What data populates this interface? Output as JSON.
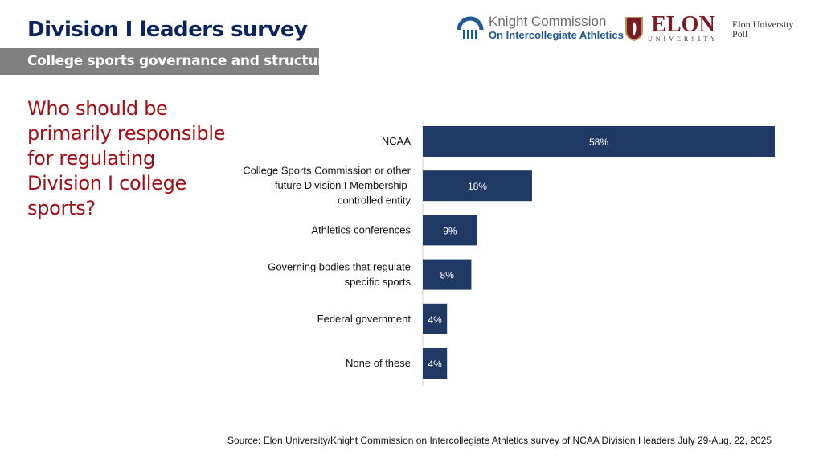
{
  "header": {
    "title": "Division I leaders survey",
    "subtitle": "College sports governance and structure",
    "logo_knight_line1": "Knight Commission",
    "logo_knight_line2": "On Intercollegiate Athletics",
    "logo_elon": "ELON",
    "logo_elon_sub": "UNIVERSITY",
    "logo_poll": "Elon University Poll"
  },
  "question": "Who should be primarily responsible for regulating Division I college sports?",
  "colors": {
    "bar": "#1f3864",
    "title": "#0b2460",
    "question": "#a50d14"
  },
  "chart_data": {
    "type": "bar",
    "orientation": "horizontal",
    "title": "Who should be primarily responsible for regulating Division I college sports?",
    "categories": [
      "NCAA",
      "College Sports Commission or other future Division I Membership-controlled entity",
      "Athletics conferences",
      "Governing bodies that regulate specific sports",
      "Federal government",
      "None of these"
    ],
    "category_lines": [
      [
        "NCAA"
      ],
      [
        "College Sports Commission or other",
        "future Division I Membership-",
        "controlled entity"
      ],
      [
        "Athletics conferences"
      ],
      [
        "Governing bodies that regulate",
        "specific sports"
      ],
      [
        "Federal government"
      ],
      [
        "None of these"
      ]
    ],
    "values": [
      58,
      18,
      9,
      8,
      4,
      4
    ],
    "labels": [
      "58%",
      "18%",
      "9%",
      "8%",
      "4%",
      "4%"
    ],
    "xlim": [
      0,
      58
    ]
  },
  "source": "Source: Elon University/Knight Commission on Intercollegiate Athletics survey of NCAA Division I leaders July 29-Aug. 22, 2025"
}
